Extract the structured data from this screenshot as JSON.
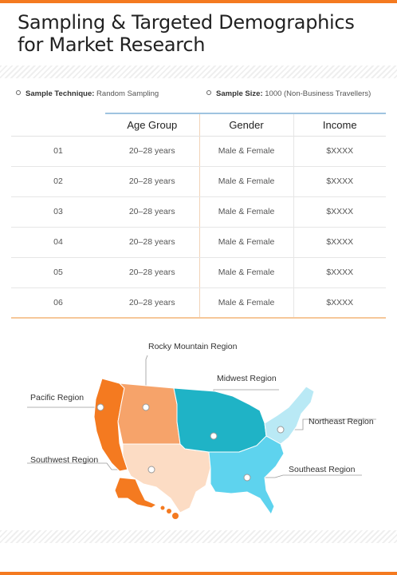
{
  "title": "Sampling & Targeted Demographics for Market Research",
  "info": {
    "technique_label": "Sample Technique:",
    "technique_value": " Random Sampling",
    "size_label": "Sample Size:",
    "size_value": " 1000 (Non-Business Travellers)"
  },
  "table": {
    "headers": [
      "",
      "Age Group",
      "Gender",
      "Income"
    ],
    "rows": [
      [
        "01",
        "20–28 years",
        "Male & Female",
        "$XXXX"
      ],
      [
        "02",
        "20–28 years",
        "Male & Female",
        "$XXXX"
      ],
      [
        "03",
        "20–28 years",
        "Male & Female",
        "$XXXX"
      ],
      [
        "04",
        "20–28 years",
        "Male & Female",
        "$XXXX"
      ],
      [
        "05",
        "20–28 years",
        "Male & Female",
        "$XXXX"
      ],
      [
        "06",
        "20–28 years",
        "Male & Female",
        "$XXXX"
      ]
    ]
  },
  "map": {
    "regions": [
      {
        "name": "Rocky Mountain Region",
        "color": "#f6a36a"
      },
      {
        "name": "Midwest Region",
        "color": "#1fb3c6"
      },
      {
        "name": "Pacific Region",
        "color": "#f47a20"
      },
      {
        "name": "Northeast Region",
        "color": "#b9e9f5"
      },
      {
        "name": "Southwest Region",
        "color": "#fcdcc4"
      },
      {
        "name": "Southeast Region",
        "color": "#5ed3ee"
      }
    ]
  },
  "colors": {
    "accent": "#f47a20",
    "header_rule": "#9fc4e0"
  }
}
